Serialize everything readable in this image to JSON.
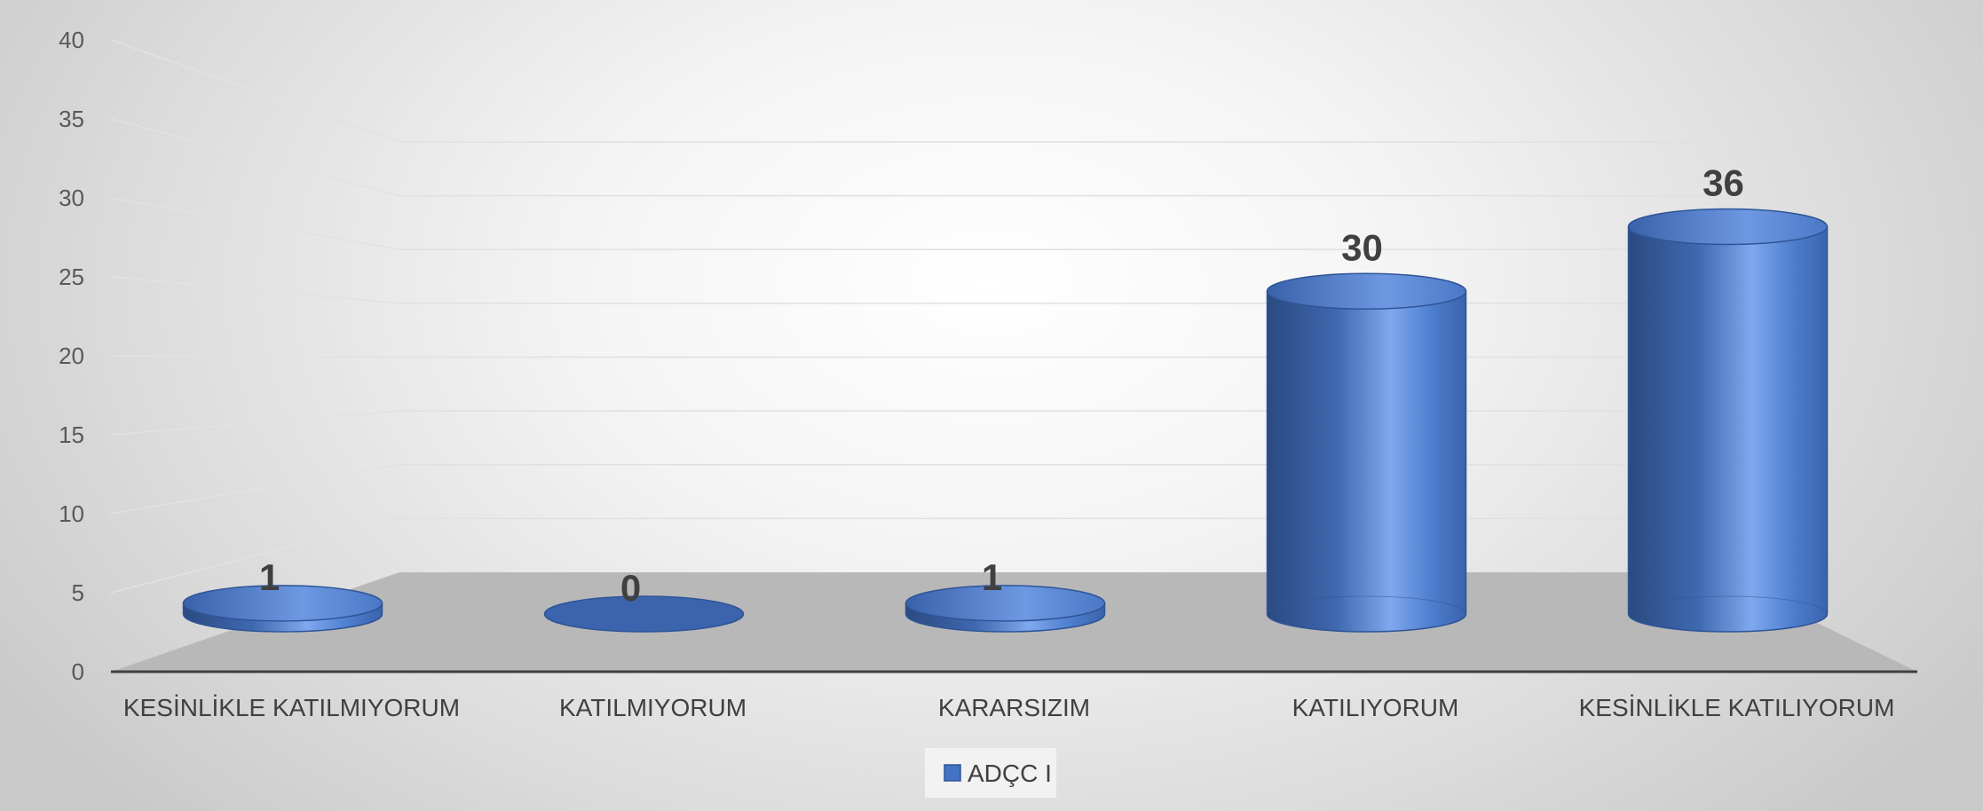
{
  "chart_data": {
    "type": "bar",
    "categories": [
      "KESİNLİKLE KATILMIYORUM",
      "KATILMIYORUM",
      "KARARSIZIM",
      "KATILIYORUM",
      "KESİNLİKLE KATILIYORUM"
    ],
    "series": [
      {
        "name": "ADÇC I",
        "values": [
          1,
          0,
          1,
          30,
          36
        ],
        "color": "#4472C4"
      }
    ],
    "data_labels": [
      "1",
      "0",
      "1",
      "30",
      "36"
    ],
    "y_ticks": [
      "0",
      "5",
      "10",
      "15",
      "20",
      "25",
      "30",
      "35",
      "40"
    ],
    "ylim": [
      0,
      40
    ],
    "bar_shape": "3d-cylinder",
    "grid": true,
    "legend_position": "bottom",
    "floor_color": "#b8b8b8"
  }
}
